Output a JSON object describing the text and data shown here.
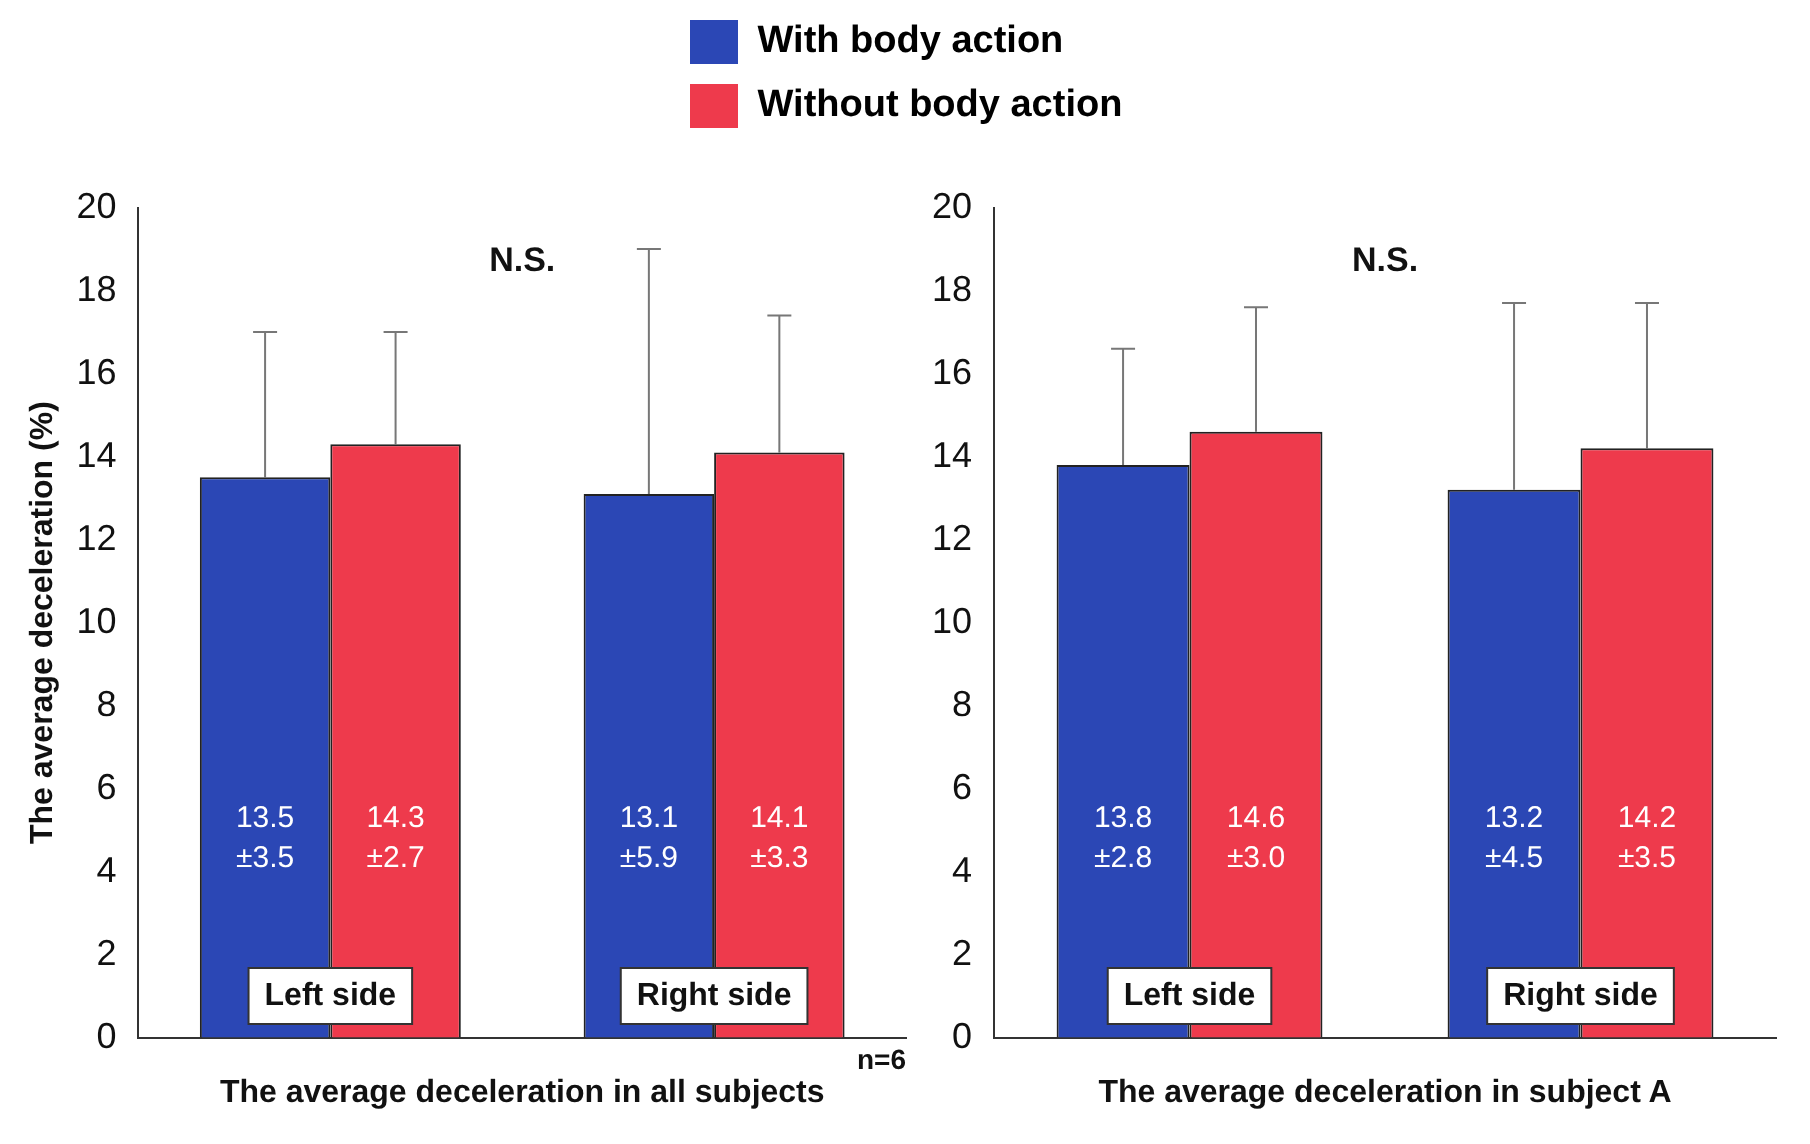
{
  "chart_data": [
    {
      "type": "bar",
      "xlabel": "The average deceleration in all subjects",
      "ylabel": "The average deceleration (%)",
      "categories": [
        "Left side",
        "Right side"
      ],
      "legend": "top",
      "ylim": [
        0,
        20
      ],
      "yticks": [
        0,
        2,
        4,
        6,
        8,
        10,
        12,
        14,
        16,
        18,
        20
      ],
      "grid": false,
      "annotations": [
        "N.S.",
        "n=6"
      ],
      "series": [
        {
          "name": "With body action",
          "color": "#2b47b5",
          "values": [
            13.5,
            13.1
          ],
          "errors": [
            [
              13.5,
              17.0
            ],
            [
              13.1,
              19.0
            ]
          ],
          "value_labels": [
            "13.5 ±3.5",
            "13.1 ±5.9"
          ]
        },
        {
          "name": "Without body action",
          "color": "#ee3a4c",
          "values": [
            14.3,
            14.1
          ],
          "errors": [
            [
              14.3,
              17.0
            ],
            [
              14.1,
              17.4
            ]
          ],
          "value_labels": [
            "14.3 ±2.7",
            "14.1 ±3.3"
          ]
        }
      ]
    },
    {
      "type": "bar",
      "xlabel": "The average deceleration in subject A",
      "categories": [
        "Left side",
        "Right side"
      ],
      "ylim": [
        0,
        20
      ],
      "yticks": [
        0,
        2,
        4,
        6,
        8,
        10,
        12,
        14,
        16,
        18,
        20
      ],
      "grid": false,
      "annotations": [
        "N.S."
      ],
      "series": [
        {
          "color": "#2b47b5",
          "values": [
            13.8,
            13.2
          ],
          "errors": [
            [
              13.8,
              16.6
            ],
            [
              13.2,
              17.7
            ]
          ],
          "value_labels": [
            "13.8 ±2.8",
            "13.2 ±4.5"
          ]
        },
        {
          "color": "#ee3a4c",
          "values": [
            14.6,
            14.2
          ],
          "errors": [
            [
              14.6,
              17.6
            ],
            [
              14.2,
              17.7
            ]
          ],
          "value_labels": [
            "14.6 ±3.0",
            "14.2 ±3.5"
          ]
        }
      ]
    }
  ]
}
